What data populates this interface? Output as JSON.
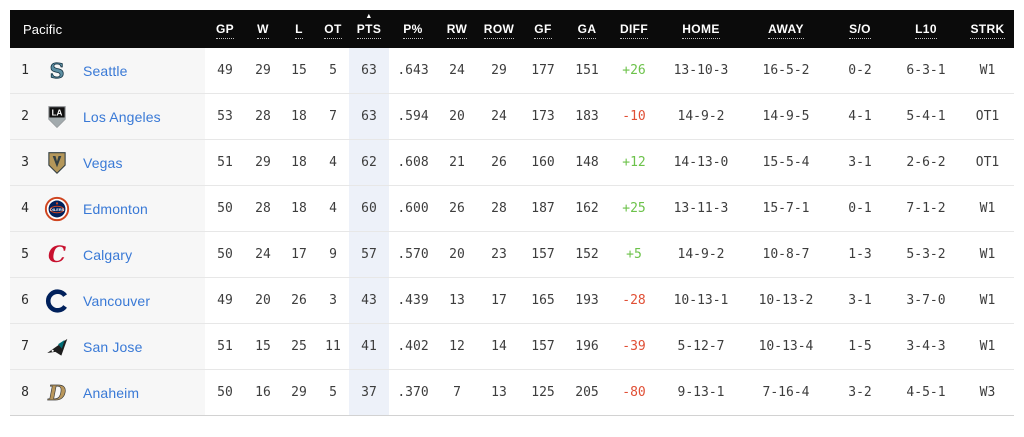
{
  "standings": {
    "division_label": "Pacific",
    "sort_indicator": "▲",
    "columns": [
      {
        "key": "gp",
        "label": "GP"
      },
      {
        "key": "w",
        "label": "W"
      },
      {
        "key": "l",
        "label": "L"
      },
      {
        "key": "ot",
        "label": "OT"
      },
      {
        "key": "pts",
        "label": "PTS",
        "sorted": true
      },
      {
        "key": "p_pct",
        "label": "P%"
      },
      {
        "key": "rw",
        "label": "RW"
      },
      {
        "key": "row",
        "label": "ROW"
      },
      {
        "key": "gf",
        "label": "GF"
      },
      {
        "key": "ga",
        "label": "GA"
      },
      {
        "key": "diff",
        "label": "DIFF"
      },
      {
        "key": "home",
        "label": "HOME"
      },
      {
        "key": "away",
        "label": "AWAY"
      },
      {
        "key": "so",
        "label": "S/O"
      },
      {
        "key": "l10",
        "label": "L10"
      },
      {
        "key": "strk",
        "label": "STRK"
      }
    ],
    "rows": [
      {
        "rank": "1",
        "team": "Seattle",
        "logo": "seattle",
        "gp": "49",
        "w": "29",
        "l": "15",
        "ot": "5",
        "pts": "63",
        "p_pct": ".643",
        "rw": "24",
        "row": "29",
        "gf": "177",
        "ga": "151",
        "diff": "+26",
        "home": "13-10-3",
        "away": "16-5-2",
        "so": "0-2",
        "l10": "6-3-1",
        "strk": "W1"
      },
      {
        "rank": "2",
        "team": "Los Angeles",
        "logo": "losangeles",
        "gp": "53",
        "w": "28",
        "l": "18",
        "ot": "7",
        "pts": "63",
        "p_pct": ".594",
        "rw": "20",
        "row": "24",
        "gf": "173",
        "ga": "183",
        "diff": "-10",
        "home": "14-9-2",
        "away": "14-9-5",
        "so": "4-1",
        "l10": "5-4-1",
        "strk": "OT1"
      },
      {
        "rank": "3",
        "team": "Vegas",
        "logo": "vegas",
        "gp": "51",
        "w": "29",
        "l": "18",
        "ot": "4",
        "pts": "62",
        "p_pct": ".608",
        "rw": "21",
        "row": "26",
        "gf": "160",
        "ga": "148",
        "diff": "+12",
        "home": "14-13-0",
        "away": "15-5-4",
        "so": "3-1",
        "l10": "2-6-2",
        "strk": "OT1"
      },
      {
        "rank": "4",
        "team": "Edmonton",
        "logo": "edmonton",
        "gp": "50",
        "w": "28",
        "l": "18",
        "ot": "4",
        "pts": "60",
        "p_pct": ".600",
        "rw": "26",
        "row": "28",
        "gf": "187",
        "ga": "162",
        "diff": "+25",
        "home": "13-11-3",
        "away": "15-7-1",
        "so": "0-1",
        "l10": "7-1-2",
        "strk": "W1"
      },
      {
        "rank": "5",
        "team": "Calgary",
        "logo": "calgary",
        "gp": "50",
        "w": "24",
        "l": "17",
        "ot": "9",
        "pts": "57",
        "p_pct": ".570",
        "rw": "20",
        "row": "23",
        "gf": "157",
        "ga": "152",
        "diff": "+5",
        "home": "14-9-2",
        "away": "10-8-7",
        "so": "1-3",
        "l10": "5-3-2",
        "strk": "W1"
      },
      {
        "rank": "6",
        "team": "Vancouver",
        "logo": "vancouver",
        "gp": "49",
        "w": "20",
        "l": "26",
        "ot": "3",
        "pts": "43",
        "p_pct": ".439",
        "rw": "13",
        "row": "17",
        "gf": "165",
        "ga": "193",
        "diff": "-28",
        "home": "10-13-1",
        "away": "10-13-2",
        "so": "3-1",
        "l10": "3-7-0",
        "strk": "W1"
      },
      {
        "rank": "7",
        "team": "San Jose",
        "logo": "sanjose",
        "gp": "51",
        "w": "15",
        "l": "25",
        "ot": "11",
        "pts": "41",
        "p_pct": ".402",
        "rw": "12",
        "row": "14",
        "gf": "157",
        "ga": "196",
        "diff": "-39",
        "home": "5-12-7",
        "away": "10-13-4",
        "so": "1-5",
        "l10": "3-4-3",
        "strk": "W1"
      },
      {
        "rank": "8",
        "team": "Anaheim",
        "logo": "anaheim",
        "gp": "50",
        "w": "16",
        "l": "29",
        "ot": "5",
        "pts": "37",
        "p_pct": ".370",
        "rw": "7",
        "row": "13",
        "gf": "125",
        "ga": "205",
        "diff": "-80",
        "home": "9-13-1",
        "away": "7-16-4",
        "so": "3-2",
        "l10": "4-5-1",
        "strk": "W3"
      }
    ]
  },
  "colors": {
    "header_bg": "#0b0b0b",
    "team_link": "#3979d6",
    "positive_diff": "#6cc24a",
    "negative_diff": "#e04f35",
    "pts_highlight": "#edf1f9"
  }
}
